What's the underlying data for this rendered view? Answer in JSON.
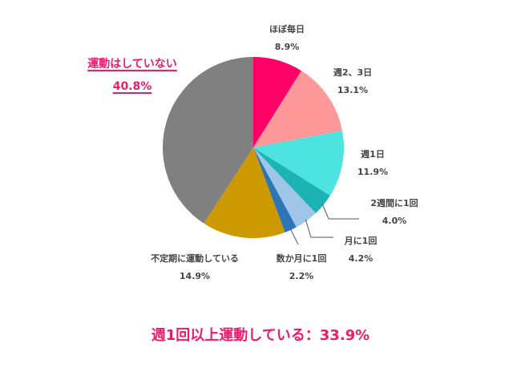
{
  "chart_data": {
    "type": "pie",
    "title": "",
    "start_angle_deg": 0,
    "direction": "clockwise",
    "slices": [
      {
        "label": "ほぼ毎日",
        "value": 8.9,
        "display": "8.9%",
        "color": "#ff0066"
      },
      {
        "label": "週2、3日",
        "value": 13.1,
        "display": "13.1%",
        "color": "#ff9999"
      },
      {
        "label": "週1日",
        "value": 11.9,
        "display": "11.9%",
        "color": "#4ce3e0"
      },
      {
        "label": "2週間に1回",
        "value": 4.0,
        "display": "4.0%",
        "color": "#1bb3b3"
      },
      {
        "label": "月に1回",
        "value": 4.2,
        "display": "4.2%",
        "color": "#9fc5e8"
      },
      {
        "label": "数か月に1回",
        "value": 2.2,
        "display": "2.2%",
        "color": "#2e75b6"
      },
      {
        "label": "不定期に運動している",
        "value": 14.9,
        "display": "14.9%",
        "color": "#cc9900"
      },
      {
        "label": "運動はしていない",
        "value": 40.8,
        "display": "40.8%",
        "color": "#808080"
      }
    ],
    "highlight": {
      "label": "運動はしていない",
      "value": "40.8%",
      "color": "#ee1b6d"
    },
    "annotation": "週1回以上運動している：33.9%",
    "legend": "none"
  },
  "labels": {
    "daily": {
      "name": "ほぼ毎日",
      "value": "8.9%"
    },
    "two_three": {
      "name": "週2、3日",
      "value": "13.1%"
    },
    "weekly": {
      "name": "週1日",
      "value": "11.9%"
    },
    "biweekly": {
      "name": "2週間に1回",
      "value": "4.0%"
    },
    "monthly": {
      "name": "月に1回",
      "value": "4.2%"
    },
    "few_months": {
      "name": "数か月に1回",
      "value": "2.2%"
    },
    "irregular": {
      "name": "不定期に運動している",
      "value": "14.9%"
    },
    "none": {
      "name": "運動はしていない",
      "value": "40.8%"
    }
  },
  "summary": "週1回以上運動している：33.9%"
}
